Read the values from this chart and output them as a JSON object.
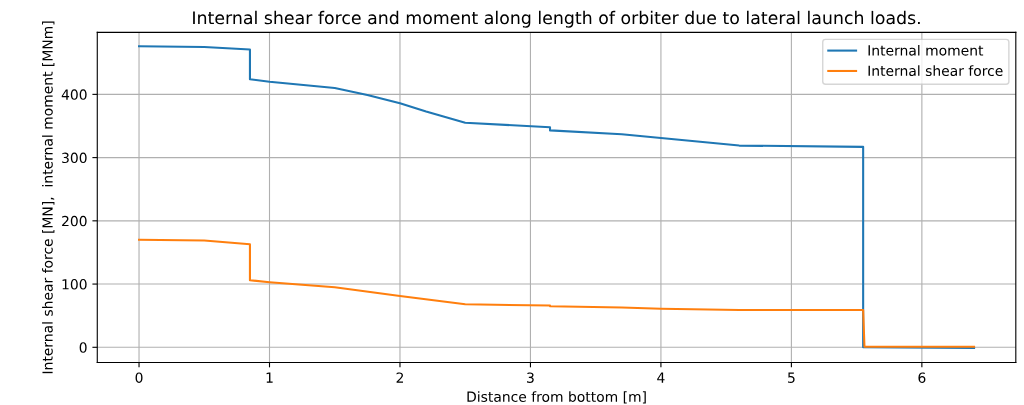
{
  "chart_data": {
    "type": "line",
    "title": "Internal shear force and moment along length of orbiter due to lateral launch loads.",
    "xlabel": "Distance from bottom [m]",
    "ylabel": "Internal shear force [MN],  internal moment [MNm]",
    "series": [
      {
        "name": "Internal moment",
        "color": "#1f77b4",
        "x": [
          0,
          0.5,
          0.85,
          0.85,
          1.0,
          1.5,
          1.75,
          2.0,
          2.2,
          2.5,
          3.15,
          3.15,
          3.7,
          4.0,
          4.6,
          5.55,
          5.55,
          6.4
        ],
        "values": [
          476,
          475,
          471,
          424,
          420,
          410,
          399,
          386,
          373,
          355,
          348,
          343,
          337,
          331,
          319,
          317,
          0,
          -1
        ]
      },
      {
        "name": "Internal shear force",
        "color": "#ff7f0e",
        "x": [
          0,
          0.5,
          0.85,
          0.85,
          1.0,
          1.5,
          2.0,
          2.5,
          3.15,
          3.15,
          3.7,
          4.0,
          4.6,
          5.55,
          5.56,
          6.4
        ],
        "values": [
          170,
          169,
          163,
          106,
          103,
          95,
          81,
          68,
          66,
          65,
          63,
          61,
          59,
          59,
          1,
          1
        ]
      }
    ],
    "xlim": [
      -0.32,
      6.72
    ],
    "ylim": [
      -24,
      498
    ],
    "xticks": [
      0,
      1,
      2,
      3,
      4,
      5,
      6
    ],
    "yticks": [
      0,
      100,
      200,
      300,
      400
    ],
    "grid": true,
    "legend": "top right"
  }
}
